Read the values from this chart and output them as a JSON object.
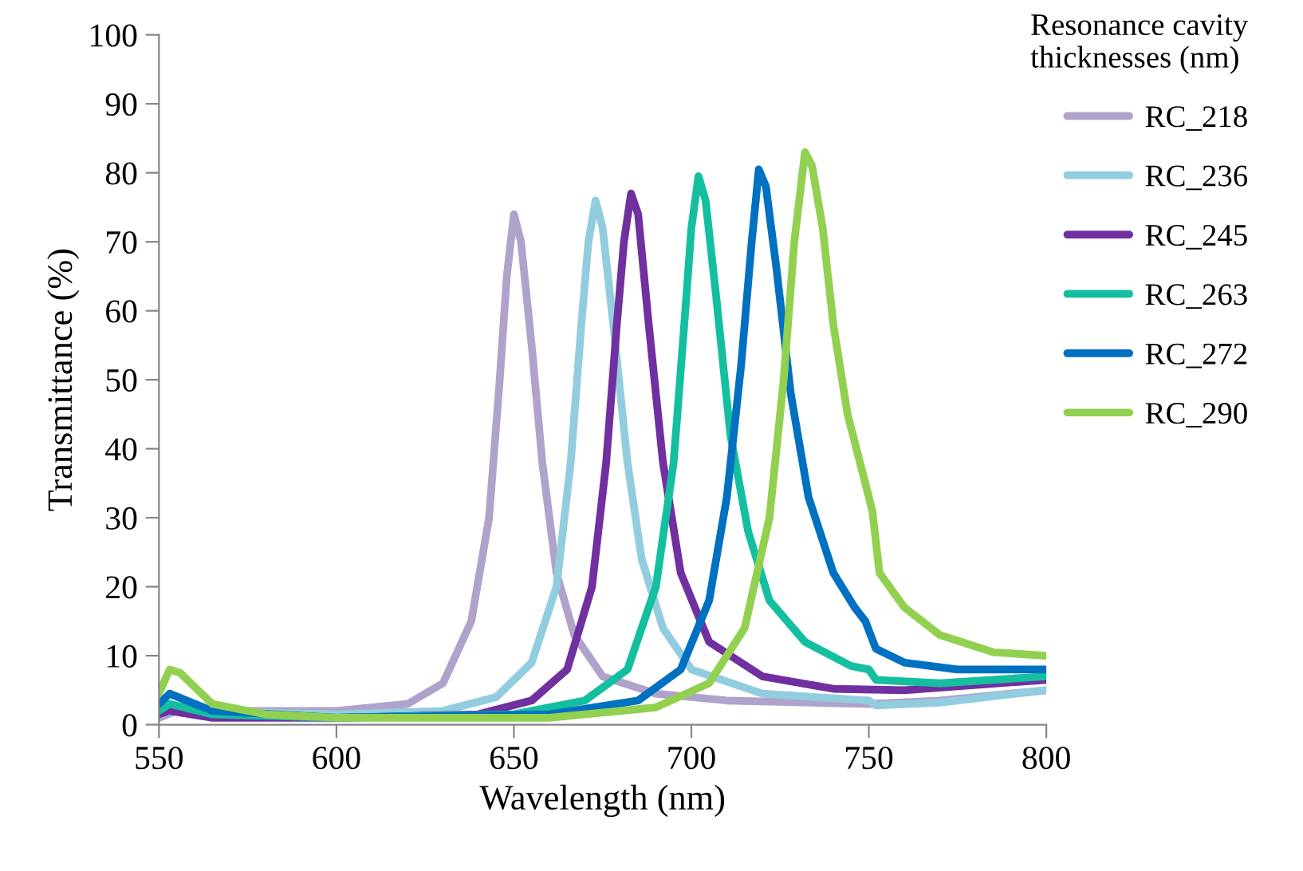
{
  "chart_data": {
    "type": "line",
    "xlabel": "Wavelength (nm)",
    "ylabel": "Transmittance (%)",
    "legend_title": "Resonance cavity\nthicknesses (nm)",
    "legend": "right",
    "grid": false,
    "marker": "none",
    "line_style": "solid",
    "xlim": [
      550,
      800
    ],
    "xticks": [
      550,
      600,
      650,
      700,
      750,
      800
    ],
    "ylim": [
      0,
      100
    ],
    "yticks": [
      0,
      10,
      20,
      30,
      40,
      50,
      60,
      70,
      80,
      90,
      100
    ],
    "series": [
      {
        "name": "RC_218",
        "color": "#b0a3cb",
        "x": [
          550,
          555,
          600,
          620,
          630,
          638,
          643,
          646,
          648,
          650,
          652,
          655,
          658,
          662,
          667,
          675,
          690,
          710,
          750,
          770,
          800
        ],
        "values": [
          1,
          2,
          2,
          3,
          6,
          15,
          30,
          50,
          65,
          74,
          70,
          55,
          38,
          22,
          13,
          7,
          4.5,
          3.5,
          3,
          3.5,
          5
        ]
      },
      {
        "name": "RC_236",
        "color": "#92cddf",
        "x": [
          550,
          555,
          600,
          630,
          645,
          655,
          662,
          666,
          669,
          671,
          673,
          675,
          678,
          682,
          686,
          692,
          700,
          720,
          750,
          752,
          770,
          800
        ],
        "values": [
          1.5,
          2,
          1.5,
          2,
          4,
          9,
          20,
          38,
          58,
          70,
          76,
          72,
          58,
          38,
          24,
          14,
          8,
          4.5,
          3.5,
          2.8,
          3.2,
          5
        ]
      },
      {
        "name": "RC_245",
        "color": "#7030a0",
        "x": [
          550,
          553,
          565,
          600,
          640,
          655,
          665,
          672,
          676,
          679,
          681,
          683,
          685,
          688,
          692,
          697,
          705,
          720,
          740,
          760,
          800
        ],
        "values": [
          1.5,
          2,
          1,
          1,
          1.5,
          3.5,
          8,
          20,
          38,
          58,
          70,
          77,
          74,
          58,
          38,
          22,
          12,
          7,
          5.2,
          5,
          6.5
        ]
      },
      {
        "name": "RC_263",
        "color": "#14bfa0",
        "x": [
          550,
          553,
          565,
          600,
          650,
          670,
          682,
          690,
          695,
          698,
          700,
          702,
          704,
          707,
          711,
          716,
          722,
          732,
          745,
          750,
          752,
          770,
          800
        ],
        "values": [
          2,
          3,
          1.5,
          1,
          1.5,
          3.5,
          8,
          20,
          38,
          58,
          72,
          79.5,
          76,
          62,
          42,
          28,
          18,
          12,
          8.5,
          8,
          6.5,
          6,
          7
        ]
      },
      {
        "name": "RC_272",
        "color": "#0070c0",
        "x": [
          550,
          553,
          565,
          600,
          660,
          685,
          697,
          705,
          710,
          714,
          717,
          719,
          721,
          724,
          728,
          733,
          740,
          746,
          749,
          752,
          760,
          775,
          800
        ],
        "values": [
          3,
          4.5,
          2,
          1,
          1.5,
          3.5,
          8,
          18,
          33,
          52,
          70,
          80.5,
          78,
          66,
          48,
          33,
          22,
          17,
          15,
          11,
          9,
          8,
          8
        ]
      },
      {
        "name": "RC_290",
        "color": "#92d050",
        "x": [
          550,
          553,
          556,
          565,
          580,
          600,
          660,
          690,
          705,
          715,
          722,
          726,
          729,
          732,
          734,
          737,
          740,
          744,
          748,
          751,
          753,
          760,
          770,
          785,
          800
        ],
        "values": [
          4.5,
          8,
          7.5,
          3,
          1.5,
          1,
          1,
          2.5,
          6,
          14,
          30,
          50,
          70,
          83,
          81,
          72,
          58,
          45,
          37,
          31,
          22,
          17,
          13,
          10.5,
          10
        ]
      }
    ]
  }
}
